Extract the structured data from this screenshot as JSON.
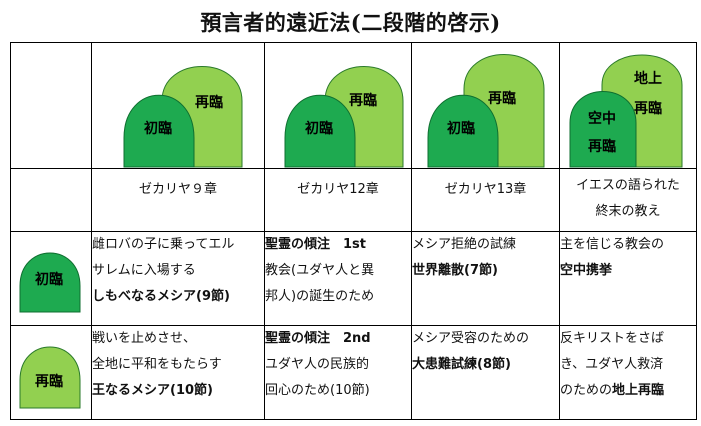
{
  "title": "預言者的遠近法(二段階的啓示)",
  "labels": {
    "first": "初臨",
    "second": "再臨",
    "air": "空中",
    "earth": "地上"
  },
  "colors": {
    "light_green": "#92d050",
    "dark_green": "#1eaa50",
    "border": "#000000"
  },
  "references": [
    "ゼカリヤ９章",
    "ゼカリヤ12章",
    "ゼカリヤ13章",
    [
      "イエスの語られた",
      "終末の教え"
    ]
  ],
  "rows": {
    "first": [
      [
        {
          "t": "雌ロバの子に乗ってエル"
        },
        {
          "t": "サレムに入場する"
        },
        {
          "t": "しもべなるメシア(9節)",
          "b": true
        }
      ],
      [
        {
          "t": "聖霊の傾注　1st",
          "b": true
        },
        {
          "t": "教会(ユダヤ人と異"
        },
        {
          "t": "邦人)の誕生のため"
        }
      ],
      [
        {
          "t": "メシア拒絶の試練"
        },
        {
          "t": "世界離散(7節)",
          "b": true
        }
      ],
      [
        {
          "t": "主を信じる教会の"
        },
        {
          "t": "空中携挙",
          "b": true
        }
      ]
    ],
    "second": [
      [
        {
          "t": "戦いを止めさせ、"
        },
        {
          "t": "全地に平和をもたらす"
        },
        {
          "t": "王なるメシア(10節)",
          "b": true
        }
      ],
      [
        {
          "t": "聖霊の傾注　2nd",
          "b": true
        },
        {
          "t": "ユダヤ人の民族的"
        },
        {
          "t": "回心のため(10節)"
        }
      ],
      [
        {
          "t": "メシア受容のための"
        },
        {
          "t": "大患難試練(8節)",
          "b": true
        }
      ],
      [
        {
          "t": "反キリストをさば"
        },
        {
          "t": "き、ユダヤ人救済"
        },
        {
          "t": "のための",
          "t2": "地上再臨"
        }
      ]
    ]
  }
}
